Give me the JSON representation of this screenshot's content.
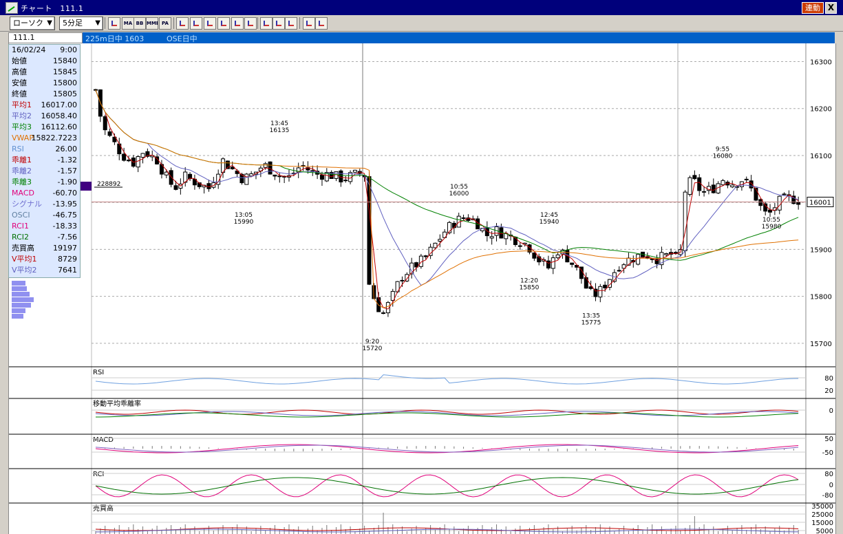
{
  "window": {
    "title": "チャート　111.1",
    "link_label": "連動",
    "close_label": "X"
  },
  "toolbar": {
    "chart_type": "ローソク",
    "interval": "5分足",
    "buttons": [
      {
        "name": "draw-settings-icon",
        "label": ""
      },
      {
        "name": "ma-button",
        "label": "MA"
      },
      {
        "name": "bb-button",
        "label": "BB"
      },
      {
        "name": "mme-button",
        "label": "MME"
      },
      {
        "name": "pa-button",
        "label": "PA"
      },
      {
        "name": "line-tool-icon",
        "label": ""
      },
      {
        "name": "cross-tool-icon",
        "label": ""
      },
      {
        "name": "star-tool-icon",
        "label": ""
      },
      {
        "name": "zoom-icon",
        "label": ""
      },
      {
        "name": "print-icon",
        "label": ""
      },
      {
        "name": "bar-tool-icon",
        "label": ""
      },
      {
        "name": "pencil-icon",
        "label": ""
      },
      {
        "name": "cursor-icon",
        "label": ""
      },
      {
        "name": "eraser-icon",
        "label": ""
      },
      {
        "name": "magnify-settings-icon",
        "label": ""
      },
      {
        "name": "no-draw-icon",
        "label": ""
      }
    ]
  },
  "infobar": {
    "symbol": "111.1",
    "product": "225m日中 1603",
    "market": "OSE日中"
  },
  "data_panel": [
    {
      "label": "16/02/24",
      "value": "9:00",
      "color": "#000000"
    },
    {
      "label": "始値",
      "value": "15840",
      "color": "#000000"
    },
    {
      "label": "高値",
      "value": "15845",
      "color": "#000000"
    },
    {
      "label": "安値",
      "value": "15800",
      "color": "#000000"
    },
    {
      "label": "終値",
      "value": "15805",
      "color": "#000000"
    },
    {
      "label": "平均1",
      "value": "16017.00",
      "color": "#c00000"
    },
    {
      "label": "平均2",
      "value": "16058.40",
      "color": "#6060c0"
    },
    {
      "label": "平均3",
      "value": "16112.60",
      "color": "#008000"
    },
    {
      "label": "VWAP",
      "value": "15822.7223",
      "color": "#e07000"
    },
    {
      "label": "RSI",
      "value": "26.00",
      "color": "#6090d0"
    },
    {
      "label": "乖離1",
      "value": "-1.32",
      "color": "#c00000"
    },
    {
      "label": "乖離2",
      "value": "-1.57",
      "color": "#6060c0"
    },
    {
      "label": "乖離3",
      "value": "-1.90",
      "color": "#008000"
    },
    {
      "label": "MACD",
      "value": "-60.70",
      "color": "#e0007a"
    },
    {
      "label": "シグナル",
      "value": "-13.95",
      "color": "#7070d0"
    },
    {
      "label": "OSCI",
      "value": "-46.75",
      "color": "#6080a0"
    },
    {
      "label": "RCI1",
      "value": "-18.33",
      "color": "#e0007a"
    },
    {
      "label": "RCI2",
      "value": "-7.56",
      "color": "#007000"
    },
    {
      "label": "売買高",
      "value": "19197",
      "color": "#000000"
    },
    {
      "label": "V平均1",
      "value": "8729",
      "color": "#c00000"
    },
    {
      "label": "V平均2",
      "value": "7641",
      "color": "#6060c0"
    }
  ],
  "colors": {
    "bull_candle": "#ffffff",
    "bear_candle": "#000000",
    "ma1": "#c00000",
    "ma2": "#6060c0",
    "ma3": "#008000",
    "vwap": "#e07000",
    "rsi": "#6ea0e0",
    "macd": "#e0007a",
    "signal": "#8060c0",
    "rci1": "#e0007a",
    "rci2": "#007000",
    "volume_profile": "#9090f0"
  },
  "chart_data": {
    "type": "candlestick",
    "session": "OSE日中",
    "price_axis": {
      "ylim": [
        15650,
        16330
      ],
      "ticks": [
        15700,
        15800,
        15900,
        16000,
        16100,
        16200,
        16300
      ]
    },
    "current_price_label": "16001",
    "current_price": 16001,
    "volume_marker_label": "228892",
    "annotations": [
      {
        "time": "13:45",
        "price": 16135,
        "text": "16135",
        "pos": "above"
      },
      {
        "time": "13:05",
        "price": 15990,
        "text": "15990",
        "pos": "below"
      },
      {
        "time": "9:20",
        "price": 15720,
        "text": "15720",
        "pos": "below"
      },
      {
        "time": "10:55",
        "price": 16000,
        "text": "16000",
        "pos": "above"
      },
      {
        "time": "12:45",
        "price": 15940,
        "text": "15940",
        "pos": "above"
      },
      {
        "time": "12:20",
        "price": 15850,
        "text": "15850",
        "pos": "below"
      },
      {
        "time": "13:35",
        "price": 15775,
        "text": "15775",
        "pos": "below"
      },
      {
        "time": "9:55",
        "price": 16080,
        "text": "16080",
        "pos": "above"
      },
      {
        "time": "10:55",
        "price": 15980,
        "text": "15980",
        "pos": "below"
      }
    ],
    "subpanels": [
      {
        "name": "rsi-panel",
        "label": "RSI",
        "ticks": [
          "80",
          "20"
        ]
      },
      {
        "name": "deviation-panel",
        "label": "移動平均乖離率",
        "ticks": [
          "0"
        ]
      },
      {
        "name": "macd-panel",
        "label": "MACD",
        "ticks": [
          "50",
          "-50"
        ]
      },
      {
        "name": "rci-panel",
        "label": "RCI",
        "ticks": [
          "80",
          "0",
          "-80"
        ]
      },
      {
        "name": "volume-panel",
        "label": "売買高",
        "ticks": [
          "35000",
          "25000",
          "15000",
          "5000"
        ]
      }
    ]
  }
}
